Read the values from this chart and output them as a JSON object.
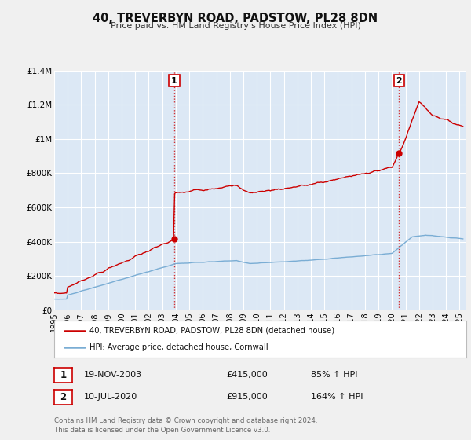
{
  "title": "40, TREVERBYN ROAD, PADSTOW, PL28 8DN",
  "subtitle": "Price paid vs. HM Land Registry's House Price Index (HPI)",
  "ylim": [
    0,
    1400000
  ],
  "xlim_start": 1995.0,
  "xlim_end": 2025.5,
  "yticks": [
    0,
    200000,
    400000,
    600000,
    800000,
    1000000,
    1200000,
    1400000
  ],
  "ytick_labels": [
    "£0",
    "£200K",
    "£400K",
    "£600K",
    "£800K",
    "£1M",
    "£1.2M",
    "£1.4M"
  ],
  "xticks": [
    1995,
    1996,
    1997,
    1998,
    1999,
    2000,
    2001,
    2002,
    2003,
    2004,
    2005,
    2006,
    2007,
    2008,
    2009,
    2010,
    2011,
    2012,
    2013,
    2014,
    2015,
    2016,
    2017,
    2018,
    2019,
    2020,
    2021,
    2022,
    2023,
    2024,
    2025
  ],
  "property_line_color": "#cc0000",
  "hpi_line_color": "#7aadd4",
  "background_plot": "#dce8f5",
  "background_fig": "#f0f0f0",
  "grid_color": "#ffffff",
  "transaction1_x": 2003.89,
  "transaction1_y": 415000,
  "transaction2_x": 2020.53,
  "transaction2_y": 915000,
  "legend_property": "40, TREVERBYN ROAD, PADSTOW, PL28 8DN (detached house)",
  "legend_hpi": "HPI: Average price, detached house, Cornwall",
  "table_row1_num": "1",
  "table_row1_date": "19-NOV-2003",
  "table_row1_price": "£415,000",
  "table_row1_hpi": "85% ↑ HPI",
  "table_row2_num": "2",
  "table_row2_date": "10-JUL-2020",
  "table_row2_price": "£915,000",
  "table_row2_hpi": "164% ↑ HPI",
  "footnote": "Contains HM Land Registry data © Crown copyright and database right 2024.\nThis data is licensed under the Open Government Licence v3.0."
}
